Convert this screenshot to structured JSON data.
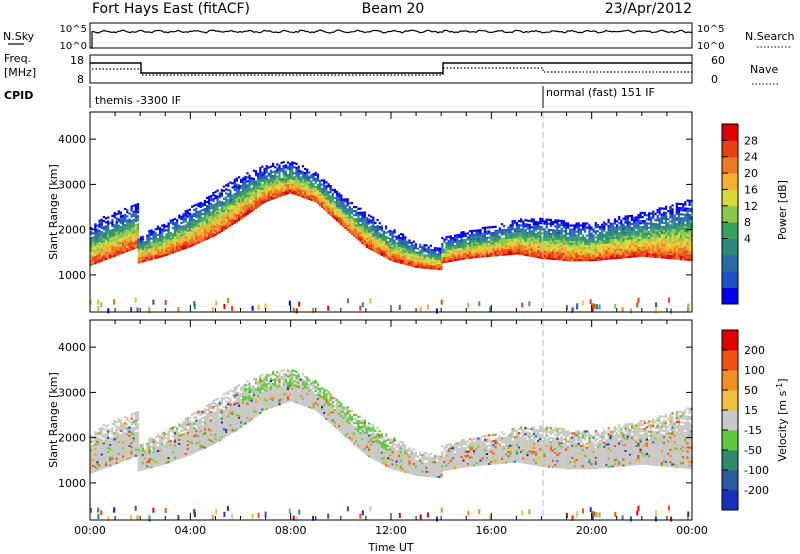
{
  "header": {
    "radar": "Fort Hays East (fitACF)",
    "beam": "Beam 20",
    "date": "23/Apr/2012"
  },
  "top_panels": {
    "nsky_label": "N.Sky",
    "nsearch_label": "N.Search",
    "nsky_ticks": [
      "10^5",
      "10^0"
    ],
    "nsearch_ticks": [
      "10^5",
      "10^0"
    ],
    "freq_label": "Freq.",
    "freq_unit": "[MHz]",
    "freq_ticks": [
      "18",
      "8"
    ],
    "nave_label": "Nave",
    "nave_ticks": [
      "60",
      "0"
    ],
    "cpid_label": "CPID",
    "cpid_segments": [
      {
        "label": "themis -3300 IF",
        "start_hour": 0,
        "end_hour": 18
      },
      {
        "label": "normal (fast) 151 IF",
        "start_hour": 18,
        "end_hour": 24
      }
    ]
  },
  "chart_data": [
    {
      "type": "heatmap",
      "name": "power",
      "ylabel": "Slant Range [km]",
      "xlabel": "",
      "ylim": [
        180,
        4600
      ],
      "yticks": [
        1000,
        2000,
        3000,
        4000
      ],
      "xlim": [
        0,
        24
      ],
      "colorbar": {
        "label": "Power [dB]",
        "ticks": [
          "28",
          "24",
          "20",
          "16",
          "12",
          "8",
          "4"
        ],
        "colors": [
          "#0000ee",
          "#1e50c8",
          "#2a6aa8",
          "#2c8a7a",
          "#3aa060",
          "#8cc84a",
          "#d8d838",
          "#f4b030",
          "#f07820",
          "#e84010",
          "#e00000"
        ]
      },
      "echo_bands": [
        {
          "start_hour": 0,
          "end_hour": 1.9,
          "lower_km": [
            1250,
            1350,
            1450,
            1550,
            1650
          ],
          "upper_km": [
            2100,
            2300,
            2400,
            2500,
            2600
          ]
        },
        {
          "start_hour": 1.9,
          "end_hour": 14.0,
          "lower_km": [
            1300,
            1450,
            1650,
            1900,
            2250,
            2650,
            2850,
            2650,
            2150,
            1650,
            1350,
            1200,
            1150
          ],
          "upper_km": [
            1900,
            2150,
            2500,
            2850,
            3200,
            3450,
            3550,
            3300,
            2800,
            2400,
            2050,
            1750,
            1600
          ]
        },
        {
          "start_hour": 14.0,
          "end_hour": 24.0,
          "lower_km": [
            1300,
            1400,
            1450,
            1500,
            1400,
            1350,
            1350,
            1400,
            1450,
            1400,
            1350
          ],
          "upper_km": [
            1850,
            2000,
            2100,
            2250,
            2300,
            2200,
            2150,
            2300,
            2400,
            2550,
            2700
          ]
        }
      ]
    },
    {
      "type": "heatmap",
      "name": "velocity",
      "ylabel": "Slant Range [km]",
      "xlabel": "Time UT",
      "ylim": [
        180,
        4600
      ],
      "yticks": [
        1000,
        2000,
        3000,
        4000
      ],
      "xlim": [
        0,
        24
      ],
      "xticks": [
        "00:00",
        "04:00",
        "08:00",
        "12:00",
        "16:00",
        "20:00",
        "00:00"
      ],
      "colorbar": {
        "label": "Velocity [m s-1]",
        "ticks": [
          "200",
          "100",
          "50",
          "15",
          "-15",
          "-50",
          "-100",
          "-200"
        ],
        "colors": [
          "#1830c0",
          "#2c5aa0",
          "#2e8a6a",
          "#60c840",
          "#c8c8c8",
          "#f0c040",
          "#f09020",
          "#f05010",
          "#e00000"
        ]
      }
    }
  ]
}
